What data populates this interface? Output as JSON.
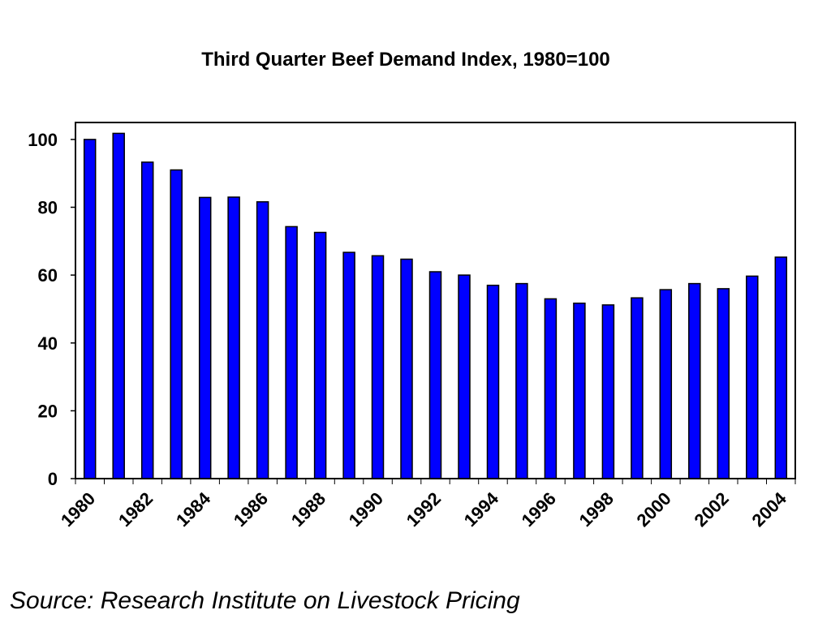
{
  "colors": {
    "bar_fill": "#0000ff",
    "bar_stroke": "#000000",
    "axis": "#000000",
    "background": "#ffffff"
  },
  "source_note": "Source: Research Institute on Livestock Pricing",
  "chart_data": {
    "type": "bar",
    "title": "Third Quarter Beef Demand Index, 1980=100",
    "xlabel": "",
    "ylabel": "",
    "categories": [
      "1980",
      "1981",
      "1982",
      "1983",
      "1984",
      "1985",
      "1986",
      "1987",
      "1988",
      "1989",
      "1990",
      "1991",
      "1992",
      "1993",
      "1994",
      "1995",
      "1996",
      "1997",
      "1998",
      "1999",
      "2000",
      "2001",
      "2002",
      "2003",
      "2004"
    ],
    "values": [
      100,
      101.8,
      93.3,
      91,
      82.9,
      83,
      81.6,
      74.3,
      72.6,
      66.7,
      65.7,
      64.7,
      61,
      60,
      57,
      57.5,
      53,
      51.7,
      51.2,
      53.3,
      55.7,
      57.5,
      56,
      59.7,
      65.3
    ],
    "x_tick_labels": [
      "1980",
      "1982",
      "1984",
      "1986",
      "1988",
      "1990",
      "1992",
      "1994",
      "1996",
      "1998",
      "2000",
      "2002",
      "2004"
    ],
    "y_ticks": [
      0,
      20,
      40,
      60,
      80,
      100
    ],
    "ylim": [
      0,
      105
    ],
    "grid": false,
    "legend": "none"
  }
}
